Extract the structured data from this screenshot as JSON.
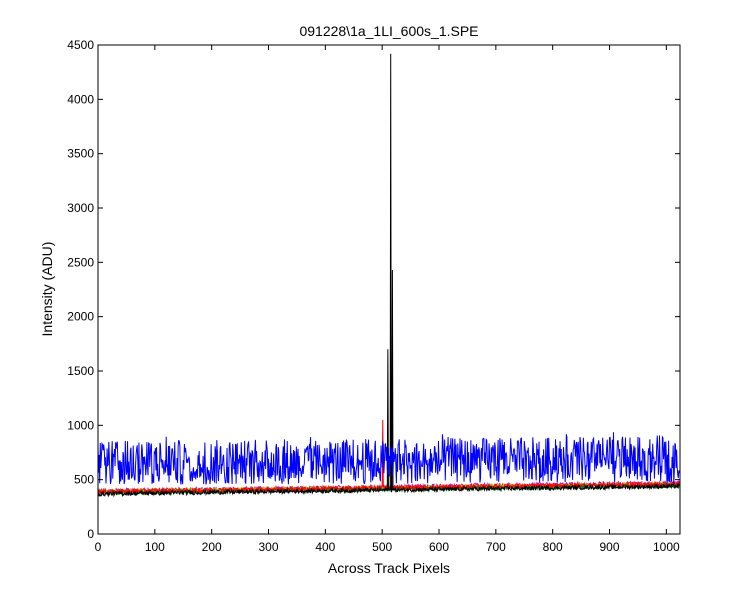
{
  "chart_data": {
    "type": "line",
    "title": "091228\\1a_1LI_600s_1.SPE",
    "xlabel": "Across Track Pixels",
    "ylabel": "Intensity (ADU)",
    "xlim": [
      0,
      1024
    ],
    "ylim": [
      0,
      4500
    ],
    "xticks": [
      0,
      100,
      200,
      300,
      400,
      500,
      600,
      700,
      800,
      900,
      1000
    ],
    "yticks": [
      0,
      500,
      1000,
      1500,
      2000,
      2500,
      3000,
      3500,
      4000,
      4500
    ],
    "grid": false,
    "series": [
      {
        "color": "#0000ff",
        "description_values": {
          "x_range": [
            0,
            1024
          ],
          "baseline_range": [
            450,
            950
          ],
          "typical_level": 650
        }
      },
      {
        "color": "#000000",
        "baseline": [
          [
            0,
            370
          ],
          [
            1024,
            440
          ]
        ],
        "spikes": [
          [
            510,
            1700
          ],
          [
            515,
            4420
          ],
          [
            518,
            2430
          ]
        ]
      },
      {
        "color": "#ff0000",
        "baseline": [
          [
            0,
            390
          ],
          [
            1024,
            460
          ]
        ],
        "spikes": [
          [
            501,
            1050
          ]
        ]
      },
      {
        "color": "#00bfbf",
        "baseline": [
          [
            0,
            385
          ],
          [
            1024,
            450
          ]
        ],
        "spikes": []
      },
      {
        "color": "#bf00bf",
        "baseline": [
          [
            0,
            395
          ],
          [
            1024,
            470
          ]
        ],
        "spikes": []
      },
      {
        "color": "#bfbf00",
        "baseline": [
          [
            0,
            390
          ],
          [
            1024,
            460
          ]
        ],
        "spikes": []
      },
      {
        "color": "#008000",
        "baseline": [
          [
            0,
            380
          ],
          [
            1024,
            445
          ]
        ],
        "spikes": []
      }
    ]
  }
}
